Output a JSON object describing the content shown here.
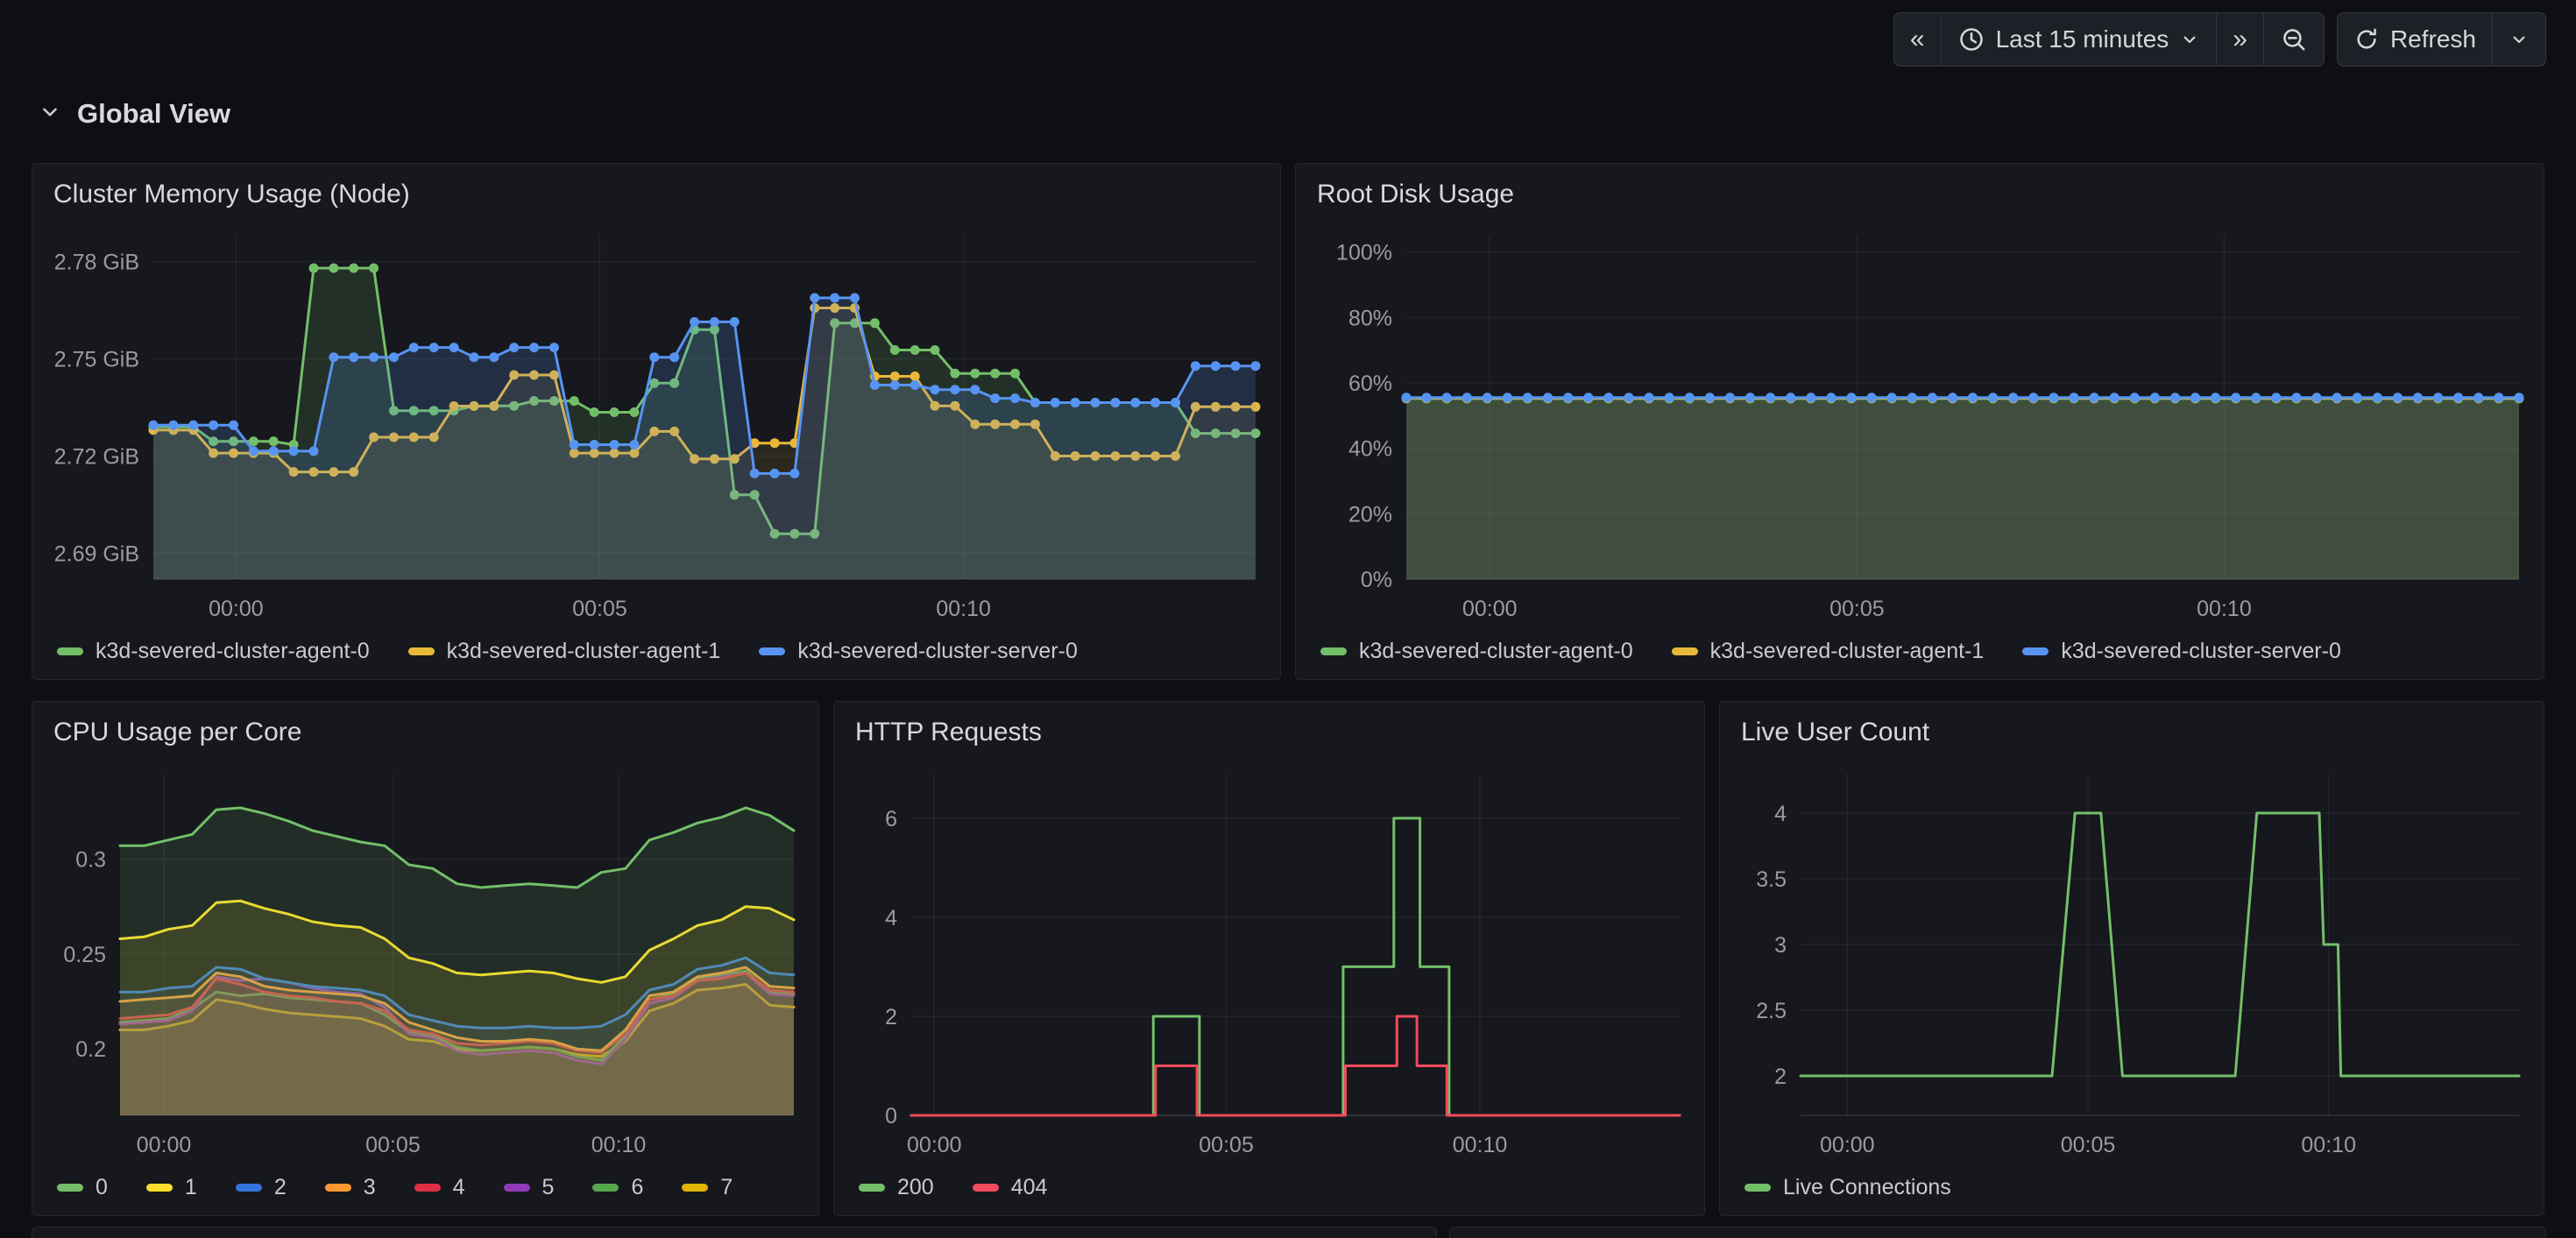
{
  "toolbar": {
    "back_icon": "«",
    "forward_icon": "»",
    "time_range_label": "Last 15 minutes",
    "refresh_label": "Refresh",
    "icons": {
      "time_picker": "clock-icon",
      "zoom_out": "magnifier-minus-icon",
      "refresh": "sync-icon",
      "caret": "chevron-down-icon"
    }
  },
  "section": {
    "title": "Global View"
  },
  "panels": {
    "memory": {
      "title": "Cluster Memory Usage (Node)"
    },
    "root_disk": {
      "title": "Root Disk Usage"
    },
    "cpu": {
      "title": "CPU Usage per Core"
    },
    "http": {
      "title": "HTTP Requests"
    },
    "live": {
      "title": "Live User Count"
    }
  },
  "colors": {
    "green": "#73BF69",
    "yellow": "#EAB839",
    "blue": "#5794F2",
    "cpu_green": "#73BF69",
    "cpu_yellow": "#FADE2A",
    "cpu_blue": "#3274D9",
    "orange": "#FF9830",
    "red": "#E02F44",
    "purple": "#8F3BB8",
    "dark_green": "#56A64B",
    "gold": "#E0B400",
    "http_ok": "#73BF69",
    "http_err": "#F2495C"
  },
  "chart_data": {
    "note": "all dashboard charts keyed below; x axis = last 15 minutes, ticks 00:00 / 00:05 / 00:10"
  },
  "charts": {
    "memory": {
      "type": "line",
      "ml": 130,
      "y_domain": [
        2.682,
        2.788
      ],
      "lw": 3,
      "dot_r": 5.5,
      "y_ticks": [
        {
          "v": 2.69,
          "label": "2.69 GiB"
        },
        {
          "v": 2.72,
          "label": "2.72 GiB"
        },
        {
          "v": 2.75,
          "label": "2.75 GiB"
        },
        {
          "v": 2.78,
          "label": "2.78 GiB"
        }
      ],
      "x_ticks": [
        {
          "f": 0.075,
          "label": "00:00"
        },
        {
          "f": 0.405,
          "label": "00:05"
        },
        {
          "f": 0.735,
          "label": "00:10"
        }
      ],
      "series": [
        {
          "name": "k3d-severed-cluster-agent-0",
          "color": "#73BF69",
          "fo": 0.15,
          "dots": true,
          "rle": [
            [
              2.729,
              3
            ],
            [
              2.7245,
              4
            ],
            [
              2.7235,
              1
            ],
            [
              2.778,
              4
            ],
            [
              2.734,
              4
            ],
            [
              2.7355,
              3
            ],
            [
              2.737,
              3
            ],
            [
              2.7335,
              3
            ],
            [
              2.7425,
              2
            ],
            [
              2.759,
              2
            ],
            [
              2.708,
              2
            ],
            [
              2.696,
              3
            ],
            [
              2.761,
              3
            ],
            [
              2.7527,
              3
            ],
            [
              2.7455,
              4
            ],
            [
              2.7365,
              8
            ],
            [
              2.727,
              4
            ]
          ]
        },
        {
          "name": "k3d-severed-cluster-agent-1",
          "color": "#EAB839",
          "fo": 0.1,
          "dots": true,
          "rle": [
            [
              2.728,
              3
            ],
            [
              2.7209,
              4
            ],
            [
              2.7151,
              4
            ],
            [
              2.7258,
              4
            ],
            [
              2.7354,
              3
            ],
            [
              2.745,
              3
            ],
            [
              2.7209,
              4
            ],
            [
              2.7276,
              2
            ],
            [
              2.7191,
              3
            ],
            [
              2.724,
              3
            ],
            [
              2.7657,
              3
            ],
            [
              2.7446,
              3
            ],
            [
              2.7355,
              2
            ],
            [
              2.7298,
              4
            ],
            [
              2.72,
              7
            ],
            [
              2.7352,
              4
            ]
          ]
        },
        {
          "name": "k3d-severed-cluster-server-0",
          "color": "#5794F2",
          "fo": 0.18,
          "dots": true,
          "rle": [
            [
              2.7295,
              5
            ],
            [
              2.7215,
              4
            ],
            [
              2.7505,
              4
            ],
            [
              2.7535,
              3
            ],
            [
              2.7505,
              2
            ],
            [
              2.7535,
              3
            ],
            [
              2.7235,
              4
            ],
            [
              2.7505,
              2
            ],
            [
              2.7614,
              3
            ],
            [
              2.7146,
              3
            ],
            [
              2.7688,
              3
            ],
            [
              2.7419,
              3
            ],
            [
              2.7405,
              3
            ],
            [
              2.7378,
              2
            ],
            [
              2.7365,
              8
            ],
            [
              2.7478,
              4
            ]
          ]
        }
      ]
    },
    "root_disk": {
      "type": "line",
      "ml": 118,
      "y_domain": [
        0,
        105
      ],
      "lw": 3,
      "dot_r": 5.5,
      "y_ticks": [
        {
          "v": 0,
          "label": "0%"
        },
        {
          "v": 20,
          "label": "20%"
        },
        {
          "v": 40,
          "label": "40%"
        },
        {
          "v": 60,
          "label": "60%"
        },
        {
          "v": 80,
          "label": "80%"
        },
        {
          "v": 100,
          "label": "100%"
        }
      ],
      "x_ticks": [
        {
          "f": 0.075,
          "label": "00:00"
        },
        {
          "f": 0.405,
          "label": "00:05"
        },
        {
          "f": 0.735,
          "label": "00:10"
        }
      ],
      "series": [
        {
          "name": "k3d-severed-cluster-agent-0",
          "color": "#73BF69",
          "fo": 0.22,
          "dots": true,
          "rle": [
            [
              55.2,
              56
            ]
          ]
        },
        {
          "name": "k3d-severed-cluster-agent-1",
          "color": "#EAB839",
          "fo": 0.1,
          "dots": true,
          "rle": [
            [
              55.35,
              56
            ]
          ]
        },
        {
          "name": "k3d-severed-cluster-server-0",
          "color": "#5794F2",
          "fo": 0.08,
          "dots": true,
          "rle": [
            [
              55.5,
              56
            ]
          ]
        }
      ]
    },
    "cpu": {
      "type": "line",
      "ml": 92,
      "y_domain": [
        0.165,
        0.345
      ],
      "lw": 3,
      "reverse_draw": true,
      "y_ticks": [
        {
          "v": 0.2,
          "label": "0.2"
        },
        {
          "v": 0.25,
          "label": "0.25"
        },
        {
          "v": 0.3,
          "label": "0.3"
        }
      ],
      "x_ticks": [
        {
          "f": 0.065,
          "label": "00:00"
        },
        {
          "f": 0.405,
          "label": "00:05"
        },
        {
          "f": 0.74,
          "label": "00:10"
        }
      ],
      "series": [
        {
          "name": "0",
          "color": "#73BF69",
          "fo": 0.13,
          "values": [
            0.307,
            0.307,
            0.31,
            0.313,
            0.326,
            0.327,
            0.324,
            0.32,
            0.315,
            0.312,
            0.309,
            0.307,
            0.297,
            0.295,
            0.287,
            0.285,
            0.286,
            0.287,
            0.286,
            0.285,
            0.293,
            0.295,
            0.31,
            0.314,
            0.319,
            0.322,
            0.327,
            0.323,
            0.315
          ]
        },
        {
          "name": "1",
          "color": "#FADE2A",
          "fo": 0.13,
          "values": [
            0.258,
            0.259,
            0.263,
            0.265,
            0.277,
            0.278,
            0.274,
            0.271,
            0.267,
            0.265,
            0.264,
            0.258,
            0.248,
            0.245,
            0.24,
            0.239,
            0.24,
            0.241,
            0.24,
            0.237,
            0.235,
            0.238,
            0.252,
            0.258,
            0.265,
            0.268,
            0.275,
            0.274,
            0.268
          ]
        },
        {
          "name": "2",
          "color": "#3274D9",
          "fo": 0.13,
          "values": [
            0.23,
            0.23,
            0.232,
            0.233,
            0.243,
            0.242,
            0.237,
            0.235,
            0.233,
            0.232,
            0.231,
            0.228,
            0.218,
            0.215,
            0.212,
            0.211,
            0.211,
            0.212,
            0.211,
            0.211,
            0.212,
            0.218,
            0.231,
            0.234,
            0.242,
            0.244,
            0.248,
            0.24,
            0.239
          ]
        },
        {
          "name": "3",
          "color": "#FF9830",
          "fo": 0.13,
          "values": [
            0.225,
            0.226,
            0.227,
            0.228,
            0.24,
            0.238,
            0.233,
            0.231,
            0.23,
            0.229,
            0.228,
            0.224,
            0.214,
            0.21,
            0.206,
            0.204,
            0.204,
            0.205,
            0.204,
            0.2,
            0.199,
            0.21,
            0.228,
            0.23,
            0.238,
            0.24,
            0.243,
            0.233,
            0.232
          ]
        },
        {
          "name": "4",
          "color": "#E02F44",
          "fo": 0.13,
          "values": [
            0.216,
            0.217,
            0.218,
            0.222,
            0.237,
            0.234,
            0.23,
            0.228,
            0.227,
            0.225,
            0.224,
            0.22,
            0.21,
            0.208,
            0.203,
            0.202,
            0.203,
            0.204,
            0.203,
            0.199,
            0.198,
            0.208,
            0.226,
            0.228,
            0.236,
            0.237,
            0.24,
            0.231,
            0.23
          ]
        },
        {
          "name": "5",
          "color": "#8F3BB8",
          "fo": 0.13,
          "values": [
            0.213,
            0.214,
            0.215,
            0.22,
            0.238,
            0.236,
            0.237,
            0.235,
            0.232,
            0.23,
            0.229,
            0.222,
            0.208,
            0.206,
            0.199,
            0.197,
            0.198,
            0.199,
            0.198,
            0.194,
            0.192,
            0.205,
            0.224,
            0.227,
            0.236,
            0.238,
            0.24,
            0.229,
            0.228
          ]
        },
        {
          "name": "6",
          "color": "#56A64B",
          "fo": 0.13,
          "values": [
            0.214,
            0.215,
            0.216,
            0.221,
            0.23,
            0.228,
            0.229,
            0.227,
            0.226,
            0.225,
            0.224,
            0.218,
            0.209,
            0.207,
            0.201,
            0.199,
            0.2,
            0.201,
            0.2,
            0.196,
            0.194,
            0.207,
            0.226,
            0.229,
            0.237,
            0.239,
            0.241,
            0.23,
            0.229
          ]
        },
        {
          "name": "7",
          "color": "#E0B400",
          "fo": 0.13,
          "values": [
            0.21,
            0.21,
            0.212,
            0.215,
            0.226,
            0.224,
            0.221,
            0.219,
            0.218,
            0.217,
            0.216,
            0.212,
            0.205,
            0.204,
            0.2,
            0.199,
            0.2,
            0.201,
            0.2,
            0.197,
            0.196,
            0.204,
            0.22,
            0.224,
            0.231,
            0.232,
            0.234,
            0.223,
            0.222
          ]
        }
      ]
    },
    "http": {
      "type": "line",
      "ml": 80,
      "y_domain": [
        0,
        6.9
      ],
      "lw": 3,
      "y_ticks": [
        {
          "v": 0,
          "label": "0"
        },
        {
          "v": 2,
          "label": "2"
        },
        {
          "v": 4,
          "label": "4"
        },
        {
          "v": 6,
          "label": "6"
        }
      ],
      "x_ticks": [
        {
          "f": 0.03,
          "label": "00:00"
        },
        {
          "f": 0.41,
          "label": "00:05"
        },
        {
          "f": 0.74,
          "label": "00:10"
        }
      ],
      "series": [
        {
          "name": "200",
          "color": "#73BF69",
          "fo": 0,
          "points": [
            [
              0,
              0
            ],
            [
              0.315,
              0
            ],
            [
              0.315,
              2
            ],
            [
              0.375,
              2
            ],
            [
              0.375,
              0
            ],
            [
              0.562,
              0
            ],
            [
              0.562,
              3
            ],
            [
              0.628,
              3
            ],
            [
              0.628,
              6
            ],
            [
              0.662,
              6
            ],
            [
              0.662,
              3
            ],
            [
              0.7,
              3
            ],
            [
              0.7,
              0
            ],
            [
              1,
              0
            ]
          ]
        },
        {
          "name": "404",
          "color": "#F2495C",
          "fo": 0,
          "points": [
            [
              0,
              0
            ],
            [
              0.318,
              0
            ],
            [
              0.318,
              1
            ],
            [
              0.372,
              1
            ],
            [
              0.372,
              0
            ],
            [
              0.565,
              0
            ],
            [
              0.565,
              1
            ],
            [
              0.632,
              1
            ],
            [
              0.632,
              2
            ],
            [
              0.658,
              2
            ],
            [
              0.658,
              1
            ],
            [
              0.697,
              1
            ],
            [
              0.697,
              0
            ],
            [
              1,
              0
            ]
          ]
        }
      ]
    },
    "live": {
      "type": "line",
      "ml": 84,
      "y_domain": [
        1.7,
        4.3
      ],
      "lw": 3,
      "y_ticks": [
        {
          "v": 2,
          "label": "2"
        },
        {
          "v": 2.5,
          "label": "2.5"
        },
        {
          "v": 3,
          "label": "3"
        },
        {
          "v": 3.5,
          "label": "3.5"
        },
        {
          "v": 4,
          "label": "4"
        }
      ],
      "x_ticks": [
        {
          "f": 0.065,
          "label": "00:00"
        },
        {
          "f": 0.4,
          "label": "00:05"
        },
        {
          "f": 0.735,
          "label": "00:10"
        }
      ],
      "series": [
        {
          "name": "Live Connections",
          "color": "#73BF69",
          "fo": 0,
          "points": [
            [
              0,
              2
            ],
            [
              0.35,
              2
            ],
            [
              0.382,
              4
            ],
            [
              0.418,
              4
            ],
            [
              0.448,
              2
            ],
            [
              0.605,
              2
            ],
            [
              0.635,
              4
            ],
            [
              0.722,
              4
            ],
            [
              0.728,
              3
            ],
            [
              0.748,
              3
            ],
            [
              0.752,
              2
            ],
            [
              1,
              2
            ]
          ]
        }
      ]
    }
  }
}
